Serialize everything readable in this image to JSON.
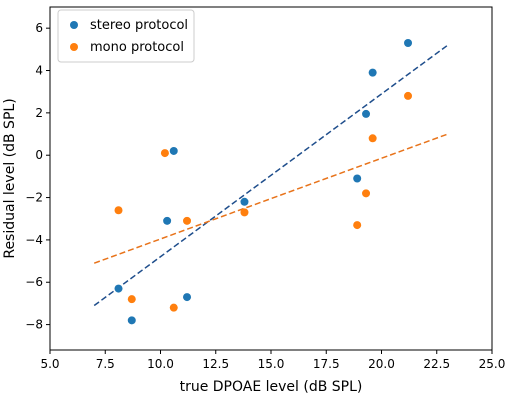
{
  "chart_data": {
    "type": "scatter",
    "title": "",
    "xlabel": "true DPOAE level (dB SPL)",
    "ylabel": "Residual level (dB SPL)",
    "xlim": [
      5.0,
      25.0
    ],
    "ylim": [
      -9.2,
      7.0
    ],
    "xticks": [
      5.0,
      7.5,
      10.0,
      12.5,
      15.0,
      17.5,
      20.0,
      22.5,
      25.0
    ],
    "yticks": [
      -8,
      -6,
      -4,
      -2,
      0,
      2,
      4,
      6
    ],
    "xtick_labels": [
      "5.0",
      "7.5",
      "10.0",
      "12.5",
      "15.0",
      "17.5",
      "20.0",
      "22.5",
      "25.0"
    ],
    "ytick_labels": [
      "−8",
      "−6",
      "−4",
      "−2",
      "0",
      "2",
      "4",
      "6"
    ],
    "grid": false,
    "legend_position": "top-left",
    "series": [
      {
        "name": "stereo protocol",
        "color": "#1f77b4",
        "points": [
          {
            "x": 8.1,
            "y": -6.3
          },
          {
            "x": 8.7,
            "y": -7.8
          },
          {
            "x": 10.3,
            "y": -3.1
          },
          {
            "x": 10.6,
            "y": 0.2
          },
          {
            "x": 11.2,
            "y": -6.7
          },
          {
            "x": 13.8,
            "y": -2.2
          },
          {
            "x": 18.9,
            "y": -1.1
          },
          {
            "x": 19.3,
            "y": 1.95
          },
          {
            "x": 19.6,
            "y": 3.9
          },
          {
            "x": 21.2,
            "y": 5.3
          }
        ],
        "trend": {
          "x": [
            7.0,
            23.0
          ],
          "y": [
            -7.1,
            5.2
          ]
        }
      },
      {
        "name": "mono protocol",
        "color": "#ff7f0e",
        "points": [
          {
            "x": 8.1,
            "y": -2.6
          },
          {
            "x": 8.7,
            "y": -6.8
          },
          {
            "x": 10.2,
            "y": 0.1
          },
          {
            "x": 10.6,
            "y": -7.2
          },
          {
            "x": 11.2,
            "y": -3.1
          },
          {
            "x": 13.8,
            "y": -2.7
          },
          {
            "x": 18.9,
            "y": -3.3
          },
          {
            "x": 19.3,
            "y": -1.8
          },
          {
            "x": 19.6,
            "y": 0.8
          },
          {
            "x": 21.2,
            "y": 2.8
          }
        ],
        "trend": {
          "x": [
            7.0,
            23.0
          ],
          "y": [
            -5.1,
            1.0
          ]
        }
      }
    ]
  }
}
